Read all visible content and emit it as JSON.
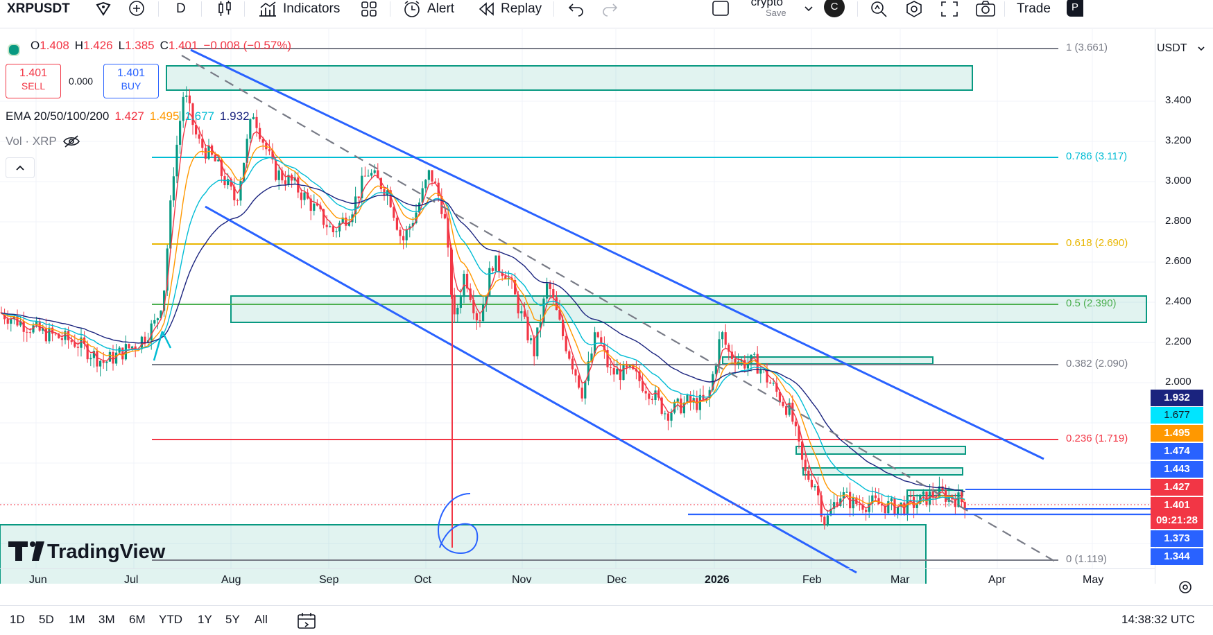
{
  "toolbar": {
    "symbol": "XRPUSDT",
    "interval": "D",
    "indicators_label": "Indicators",
    "alert_label": "Alert",
    "replay_label": "Replay",
    "layout_name": "crypto",
    "layout_save": "Save",
    "user_initial": "C",
    "trade_label": "Trade",
    "trade_extra": "P"
  },
  "legend": {
    "o_label": "O",
    "o_value": "1.408",
    "h_label": "H",
    "h_value": "1.426",
    "l_label": "L",
    "l_value": "1.385",
    "c_label": "C",
    "c_value": "1.401",
    "change": "−0.008 (−0.57%)",
    "sell_price": "1.401",
    "sell_label": "SELL",
    "spread": "0.000",
    "buy_price": "1.401",
    "buy_label": "BUY",
    "ema_label": "EMA 20/50/100/200",
    "ema20": "1.427",
    "ema50": "1.495",
    "ema100": "1.677",
    "ema200": "1.932",
    "vol_label": "Vol · XRP"
  },
  "price_axis": {
    "currency": "USDT",
    "labels": [
      "3.400",
      "3.200",
      "3.000",
      "2.800",
      "2.600",
      "2.400",
      "2.200",
      "2.000"
    ],
    "badges": [
      {
        "value": "1.932",
        "color": "#1a237e"
      },
      {
        "value": "1.677",
        "color": "#00e5ff"
      },
      {
        "value": "1.495",
        "color": "#ff9800"
      },
      {
        "value": "1.474",
        "color": "#2962ff"
      },
      {
        "value": "1.443",
        "color": "#2962ff"
      },
      {
        "value": "1.427",
        "color": "#f23645"
      },
      {
        "value": "1.401",
        "color": "#f23645"
      },
      {
        "value": "09:21:28",
        "color": "#f23645"
      },
      {
        "value": "1.373",
        "color": "#2962ff"
      },
      {
        "value": "1.344",
        "color": "#2962ff"
      }
    ]
  },
  "fib": [
    {
      "label": "1 (3.661)",
      "color": "#787b86"
    },
    {
      "label": "0.786 (3.117)",
      "color": "#00bcd4"
    },
    {
      "label": "0.618 (2.690)",
      "color": "#e8b600"
    },
    {
      "label": "0.5 (2.390)",
      "color": "#4caf50"
    },
    {
      "label": "0.382 (2.090)",
      "color": "#787b86"
    },
    {
      "label": "0.236 (1.719)",
      "color": "#f23645"
    },
    {
      "label": "0 (1.119)",
      "color": "#787b86"
    }
  ],
  "time_axis": [
    "Jun",
    "Jul",
    "Aug",
    "Sep",
    "Oct",
    "Nov",
    "Dec",
    "2026",
    "Feb",
    "Mar",
    "Apr",
    "May"
  ],
  "bottom": {
    "ranges": [
      "1D",
      "5D",
      "1M",
      "3M",
      "6M",
      "YTD",
      "1Y",
      "5Y",
      "All"
    ],
    "clock": "14:38:32 UTC"
  },
  "watermark": "TradingView",
  "annotation_text": "6",
  "colors": {
    "up": "#089981",
    "down": "#f23645",
    "channel": "#2962ff",
    "zone": "#089981"
  }
}
